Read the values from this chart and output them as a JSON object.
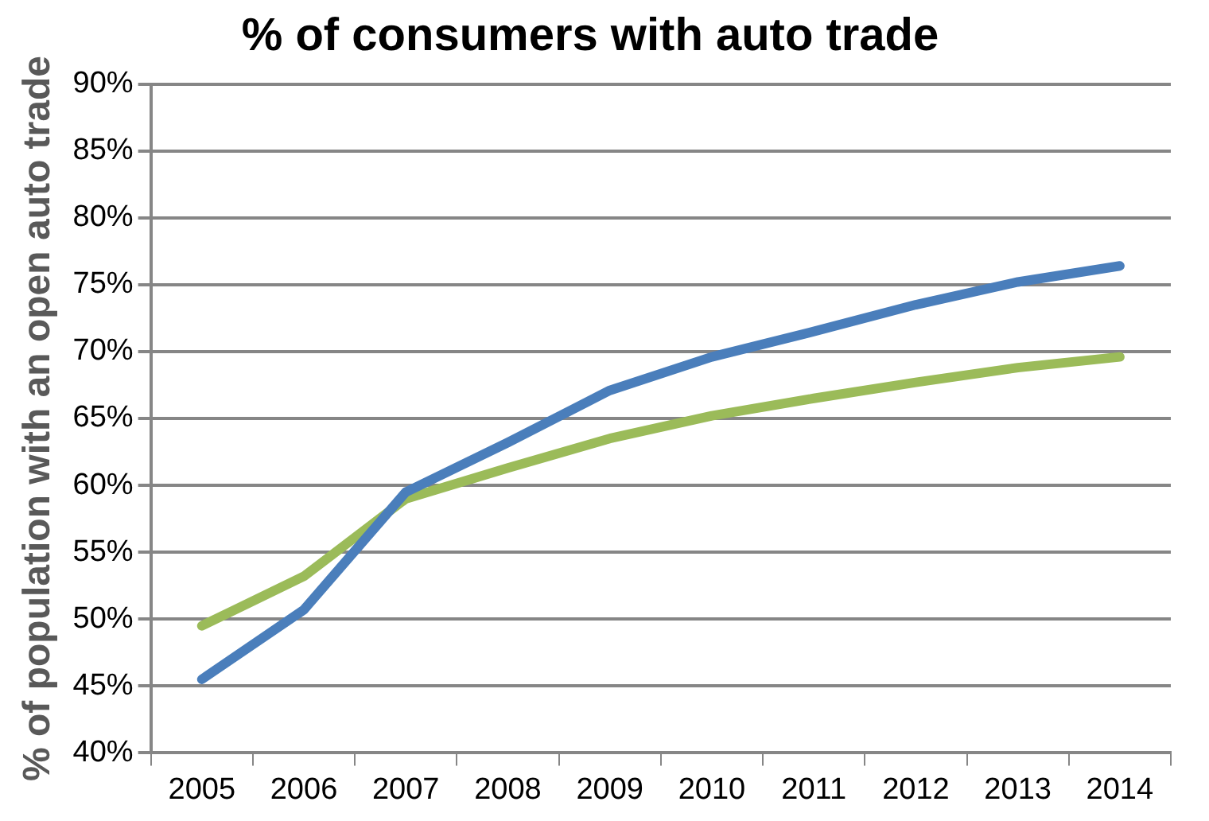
{
  "chart_data": {
    "type": "line",
    "title": "% of consumers with auto trade",
    "ylabel": "% of population with an open auto trade",
    "categories": [
      "2005",
      "2006",
      "2007",
      "2008",
      "2009",
      "2010",
      "2011",
      "2012",
      "2013",
      "2014"
    ],
    "series": [
      {
        "color": "#4a7ebb",
        "values": [
          45.5,
          50.7,
          59.5,
          63.2,
          67.1,
          69.6,
          71.5,
          73.5,
          75.2,
          76.4
        ]
      },
      {
        "color": "#9bbb59",
        "values": [
          49.5,
          53.2,
          59.0,
          61.3,
          63.5,
          65.2,
          66.5,
          67.7,
          68.8,
          69.6
        ]
      }
    ],
    "ylim": [
      40,
      90
    ],
    "yticks": [
      {
        "value": 40,
        "label": "40%"
      },
      {
        "value": 45,
        "label": "45%"
      },
      {
        "value": 50,
        "label": "50%"
      },
      {
        "value": 55,
        "label": "55%"
      },
      {
        "value": 60,
        "label": "60%"
      },
      {
        "value": 65,
        "label": "65%"
      },
      {
        "value": 70,
        "label": "70%"
      },
      {
        "value": 75,
        "label": "75%"
      },
      {
        "value": 80,
        "label": "80%"
      },
      {
        "value": 85,
        "label": "85%"
      },
      {
        "value": 90,
        "label": "90%"
      }
    ],
    "grid": "y",
    "legend": false,
    "marker": "none",
    "line_style": "solid"
  }
}
